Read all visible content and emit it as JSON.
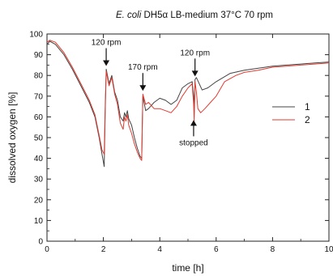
{
  "chart_data": {
    "type": "line",
    "title_italic": "E. coli",
    "title_rest": " DH5α LB-medium 37°C 70 rpm",
    "xlabel": "time [h]",
    "ylabel": "dissolved oxygen [%]",
    "xlim": [
      0,
      10
    ],
    "ylim": [
      0,
      100
    ],
    "xticks": [
      0,
      2,
      4,
      6,
      8,
      10
    ],
    "yticks": [
      0,
      10,
      20,
      30,
      40,
      50,
      60,
      70,
      80,
      90,
      100
    ],
    "grid": false,
    "legend_position": "right",
    "annotations": [
      {
        "text": "120 rpm",
        "x": 2.1,
        "y": 83,
        "arrow": "down"
      },
      {
        "text": "170 rpm",
        "x": 3.4,
        "y": 71,
        "arrow": "down"
      },
      {
        "text": "120 rpm",
        "x": 5.25,
        "y": 78,
        "arrow": "down"
      },
      {
        "text": "stopped",
        "x": 5.2,
        "y": 60,
        "arrow": "up"
      }
    ],
    "series": [
      {
        "name": "1",
        "color": "#444444",
        "x": [
          0,
          0.1,
          0.3,
          0.6,
          0.9,
          1.2,
          1.5,
          1.7,
          1.85,
          1.95,
          2.03,
          2.07,
          2.1,
          2.2,
          2.3,
          2.4,
          2.5,
          2.6,
          2.7,
          2.75,
          2.8,
          2.85,
          2.9,
          3.0,
          3.1,
          3.2,
          3.3,
          3.36,
          3.4,
          3.5,
          3.6,
          3.8,
          4.0,
          4.2,
          4.4,
          4.6,
          4.8,
          5.0,
          5.15,
          5.2,
          5.22,
          5.25,
          5.3,
          5.4,
          5.5,
          5.7,
          6.0,
          6.5,
          7.0,
          7.5,
          8.0,
          8.5,
          9.0,
          9.5,
          10.0
        ],
        "y": [
          95,
          96.5,
          95,
          90,
          83,
          75,
          67,
          60,
          50,
          42,
          36,
          65,
          83,
          76,
          80,
          72,
          68,
          60,
          58,
          62,
          60,
          63,
          59,
          56,
          50,
          45,
          41,
          40,
          70,
          63,
          64,
          67,
          69,
          68,
          66,
          68,
          74,
          76,
          77,
          70,
          62,
          78,
          79,
          76,
          73,
          74,
          77,
          81,
          82.5,
          83.5,
          84.5,
          85,
          85.5,
          86,
          86.5
        ]
      },
      {
        "name": "2",
        "color": "#e03b30",
        "x": [
          0,
          0.1,
          0.3,
          0.6,
          0.9,
          1.2,
          1.5,
          1.7,
          1.85,
          1.95,
          2.03,
          2.07,
          2.1,
          2.2,
          2.3,
          2.4,
          2.5,
          2.6,
          2.7,
          2.75,
          2.8,
          2.85,
          2.9,
          3.0,
          3.1,
          3.2,
          3.3,
          3.36,
          3.4,
          3.5,
          3.6,
          3.8,
          4.0,
          4.2,
          4.4,
          4.6,
          4.8,
          5.0,
          5.15,
          5.2,
          5.22,
          5.25,
          5.3,
          5.35,
          5.45,
          5.6,
          5.8,
          6.0,
          6.3,
          6.7,
          7.0,
          7.5,
          8.0,
          8.5,
          9.0,
          9.5,
          10.0
        ],
        "y": [
          96,
          97,
          96,
          91,
          84,
          76,
          68,
          61,
          51,
          44,
          42,
          68,
          82,
          75,
          79,
          71,
          66,
          57,
          54,
          60,
          58,
          61,
          56,
          52,
          47,
          43,
          40,
          39,
          71,
          66,
          67,
          64,
          64,
          63,
          62,
          65,
          70,
          74,
          76,
          66,
          58,
          77,
          72,
          64,
          62,
          64,
          67,
          70,
          77,
          80,
          81.5,
          82.5,
          84,
          84.5,
          85,
          85.5,
          86
        ]
      }
    ]
  }
}
